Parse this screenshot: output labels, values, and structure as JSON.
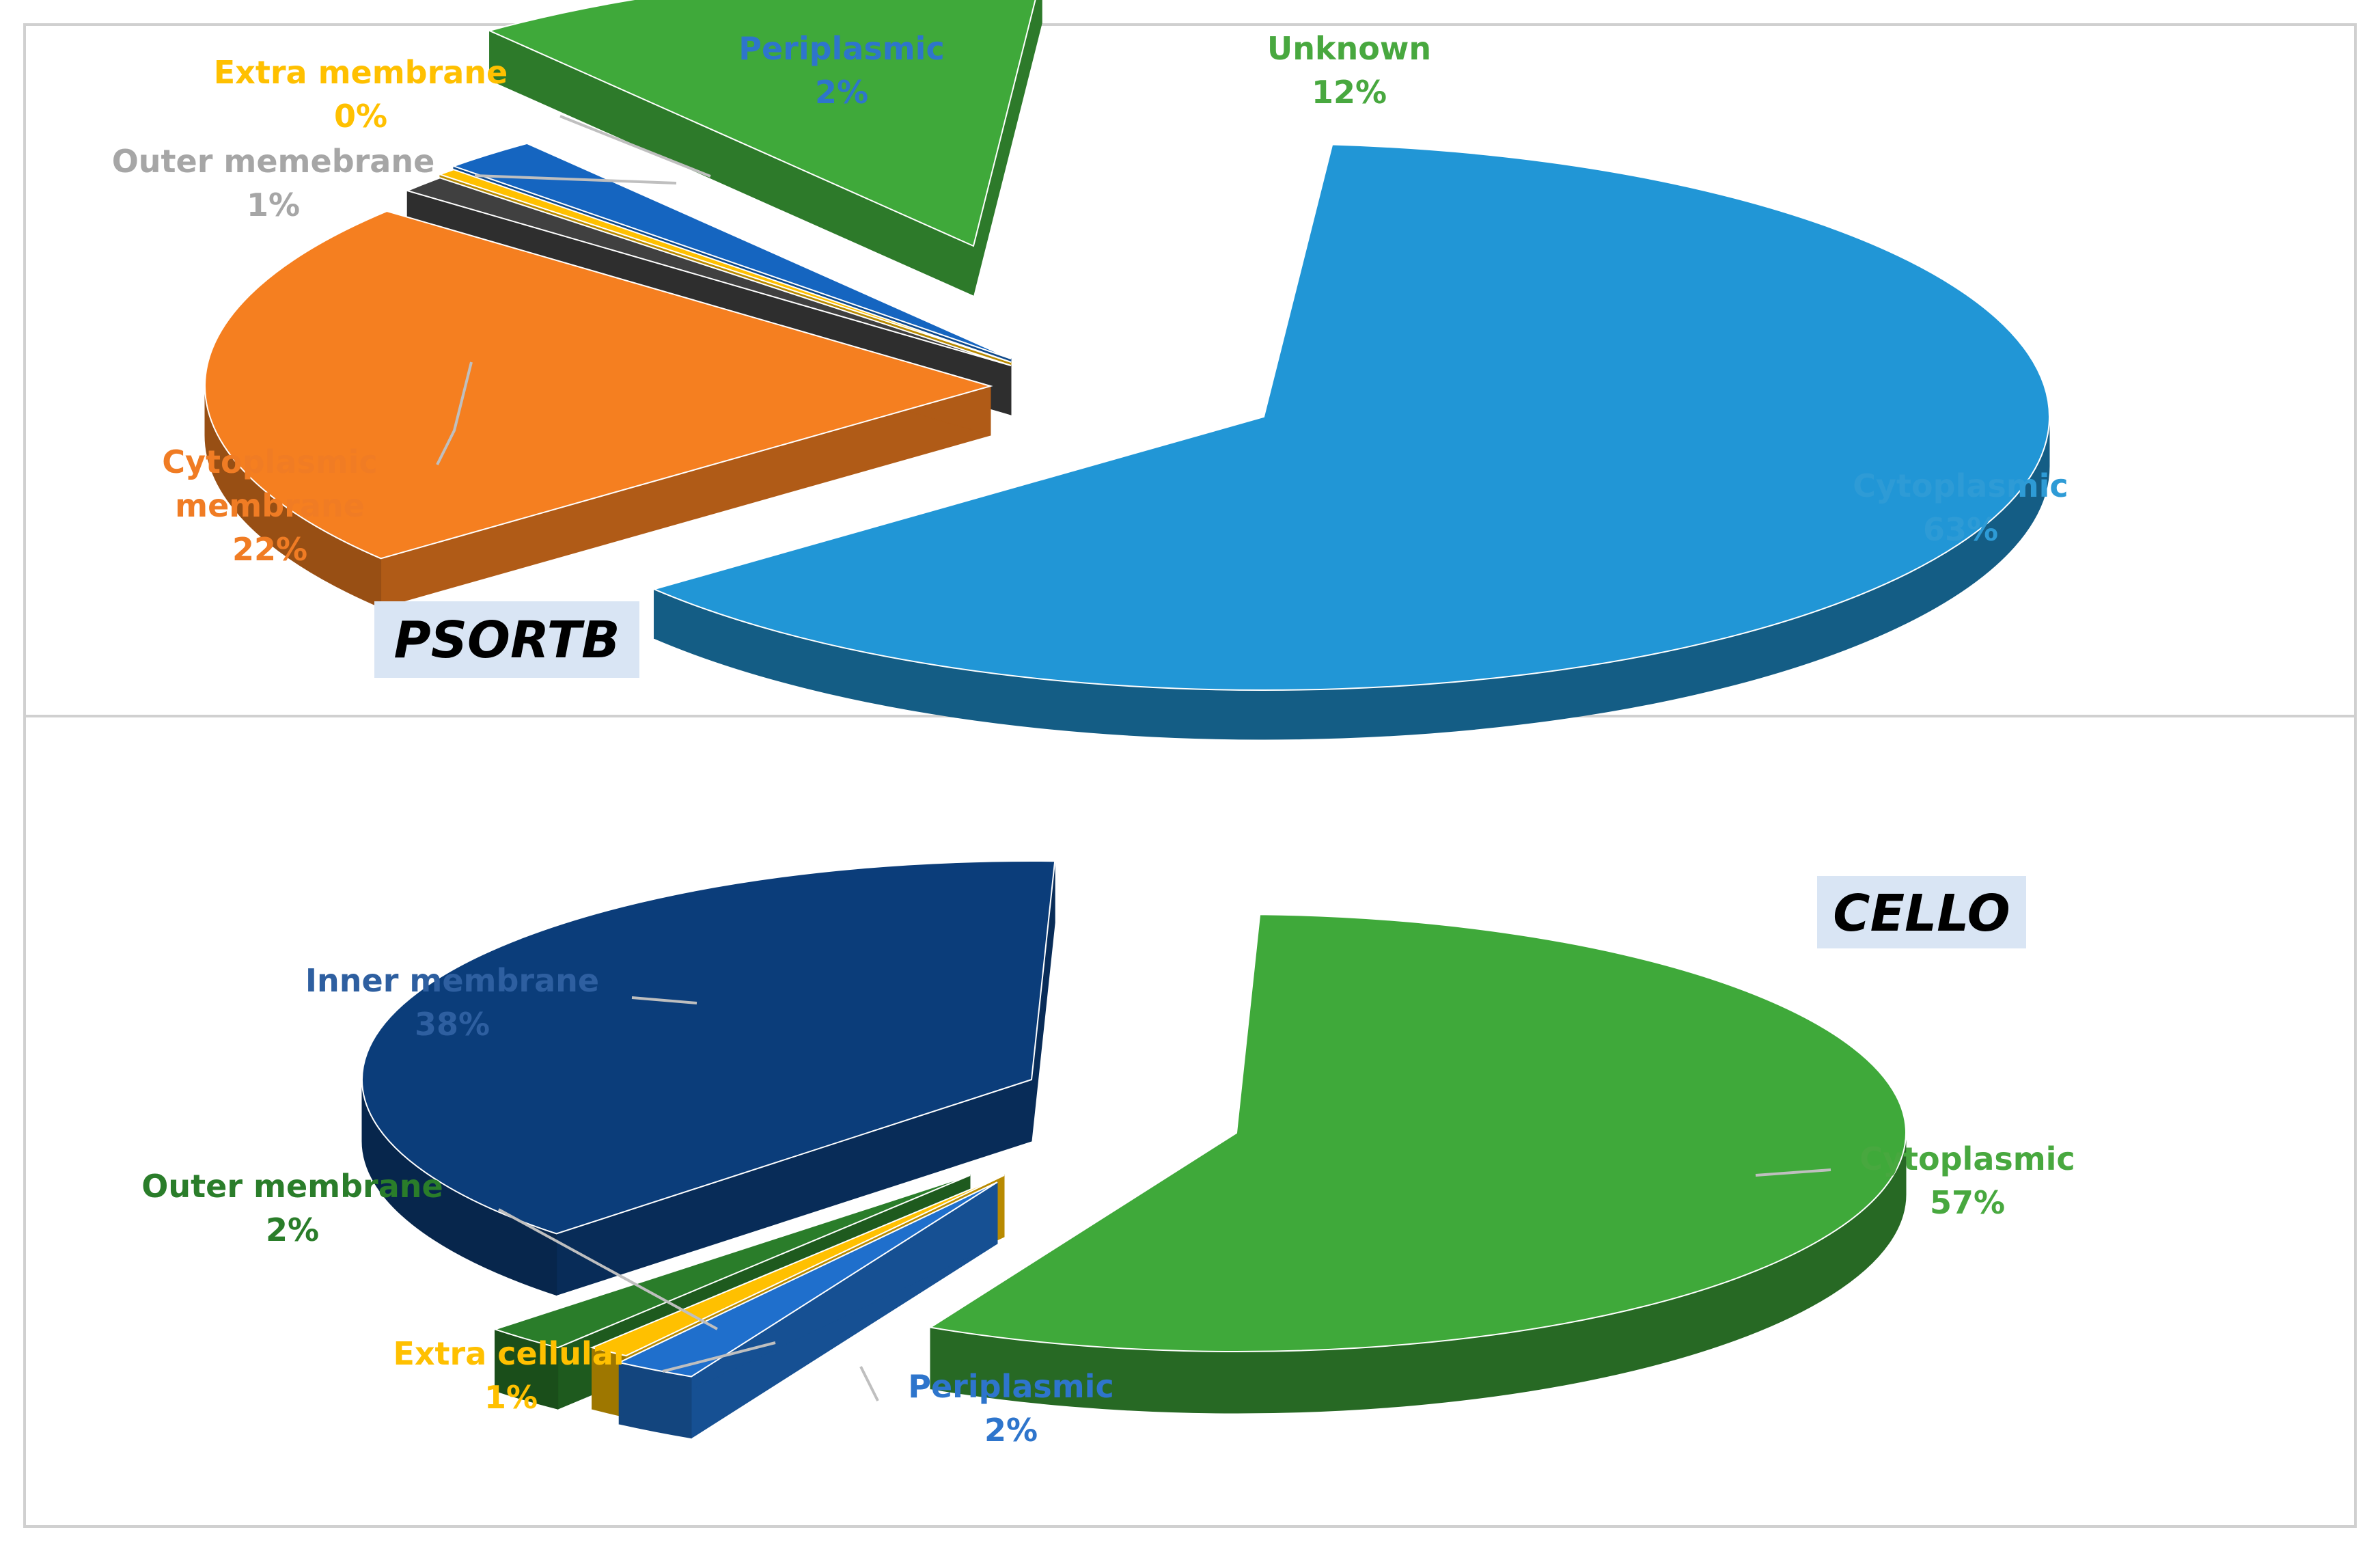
{
  "chart_data": [
    {
      "type": "pie",
      "title": "PSORTB",
      "slices": [
        {
          "label": "Cytoplasmic",
          "percent_label": "63%",
          "value": 63,
          "color": "#2196d6"
        },
        {
          "label": "Cytoplasmic membrane",
          "label_lines": [
            "Cytoplasmic",
            "membrane"
          ],
          "percent_label": "22%",
          "value": 22,
          "color": "#f57f20"
        },
        {
          "label": "Outer memebrane",
          "percent_label": "1%",
          "value": 1,
          "color": "#404040"
        },
        {
          "label": "Extra membrane",
          "percent_label": "0%",
          "value": 0.4,
          "color": "#ffc000"
        },
        {
          "label": "Periplasmic",
          "percent_label": "2%",
          "value": 2,
          "color": "#1565c0"
        },
        {
          "label": "Unknown",
          "percent_label": "12%",
          "value": 12,
          "color": "#3fa93a"
        }
      ],
      "label_colors": {
        "Cytoplasmic": "#2e9bd6",
        "Cytoplasmic membrane": "#f07c24",
        "Outer memebrane": "#a6a6a6",
        "Extra membrane": "#ffc000",
        "Periplasmic": "#2e75cc",
        "Unknown": "#48a83f"
      },
      "legend": "none"
    },
    {
      "type": "pie",
      "title": "CELLO",
      "slices": [
        {
          "label": "Cytoplasmic",
          "percent_label": "57%",
          "value": 57,
          "color": "#3fa93a"
        },
        {
          "label": "Periplasmic",
          "percent_label": "2%",
          "value": 2,
          "color": "#1f6fcc"
        },
        {
          "label": "Extra cellular",
          "percent_label": "1%",
          "value": 1,
          "color": "#ffc000"
        },
        {
          "label": "Outer membrane",
          "percent_label": "2%",
          "value": 2,
          "color": "#2a7d2a"
        },
        {
          "label": "Inner membrane",
          "percent_label": "38%",
          "value": 38,
          "color": "#0b3d7a"
        }
      ],
      "label_colors": {
        "Cytoplasmic": "#48a83f",
        "Periplasmic": "#2e75cc",
        "Extra cellular": "#ffc000",
        "Outer membrane": "#2a7d2a",
        "Inner membrane": "#2e5fa0"
      },
      "legend": "none"
    }
  ]
}
